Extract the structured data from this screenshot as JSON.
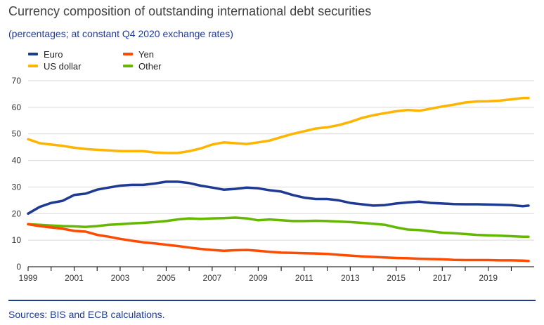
{
  "header": {
    "title": "Currency composition of outstanding international debt securities",
    "subtitle": "(percentages; at constant Q4 2020 exchange rates)"
  },
  "footer": {
    "source": "Sources: BIS and ECB calculations."
  },
  "chart_data": {
    "type": "line",
    "title": "Currency composition of outstanding international debt securities",
    "subtitle": "(percentages; at constant Q4 2020 exchange rates)",
    "xlabel": "",
    "ylabel": "",
    "xlim": [
      1999,
      2020.75
    ],
    "ylim": [
      0,
      70
    ],
    "x_ticks": [
      "1999",
      "2001",
      "2003",
      "2005",
      "2007",
      "2009",
      "2011",
      "2013",
      "2015",
      "2017",
      "2019"
    ],
    "y_ticks": [
      "0",
      "10",
      "20",
      "30",
      "40",
      "50",
      "60",
      "70"
    ],
    "grid": "horizontal",
    "legend_position": "top-left",
    "series": [
      {
        "name": "Euro",
        "color": "#1f3a93",
        "points": [
          [
            1999,
            20
          ],
          [
            1999.5,
            22.5
          ],
          [
            2000,
            24
          ],
          [
            2000.5,
            24.8
          ],
          [
            2001,
            27
          ],
          [
            2001.5,
            27.5
          ],
          [
            2002,
            29
          ],
          [
            2002.5,
            29.8
          ],
          [
            2003,
            30.5
          ],
          [
            2003.5,
            30.8
          ],
          [
            2004,
            30.8
          ],
          [
            2004.5,
            31.3
          ],
          [
            2005,
            32
          ],
          [
            2005.5,
            32
          ],
          [
            2006,
            31.5
          ],
          [
            2006.5,
            30.5
          ],
          [
            2007,
            29.8
          ],
          [
            2007.5,
            29
          ],
          [
            2008,
            29.3
          ],
          [
            2008.5,
            29.8
          ],
          [
            2009,
            29.5
          ],
          [
            2009.5,
            28.8
          ],
          [
            2010,
            28.3
          ],
          [
            2010.5,
            27
          ],
          [
            2011,
            26
          ],
          [
            2011.5,
            25.5
          ],
          [
            2012,
            25.5
          ],
          [
            2012.5,
            25
          ],
          [
            2013,
            24
          ],
          [
            2013.5,
            23.5
          ],
          [
            2014,
            23
          ],
          [
            2014.5,
            23.2
          ],
          [
            2015,
            23.8
          ],
          [
            2015.5,
            24.2
          ],
          [
            2016,
            24.5
          ],
          [
            2016.5,
            24
          ],
          [
            2017,
            23.8
          ],
          [
            2017.5,
            23.6
          ],
          [
            2018,
            23.5
          ],
          [
            2018.5,
            23.5
          ],
          [
            2019,
            23.4
          ],
          [
            2019.5,
            23.3
          ],
          [
            2020,
            23.2
          ],
          [
            2020.5,
            22.8
          ],
          [
            2020.75,
            23
          ]
        ]
      },
      {
        "name": "US dollar",
        "color": "#ffb400",
        "points": [
          [
            1999,
            48
          ],
          [
            1999.5,
            46.5
          ],
          [
            2000,
            46
          ],
          [
            2000.5,
            45.5
          ],
          [
            2001,
            44.8
          ],
          [
            2001.5,
            44.3
          ],
          [
            2002,
            44
          ],
          [
            2002.5,
            43.8
          ],
          [
            2003,
            43.5
          ],
          [
            2003.5,
            43.5
          ],
          [
            2004,
            43.5
          ],
          [
            2004.5,
            43
          ],
          [
            2005,
            42.8
          ],
          [
            2005.5,
            42.8
          ],
          [
            2006,
            43.5
          ],
          [
            2006.5,
            44.5
          ],
          [
            2007,
            46
          ],
          [
            2007.5,
            46.8
          ],
          [
            2008,
            46.5
          ],
          [
            2008.5,
            46.2
          ],
          [
            2009,
            46.8
          ],
          [
            2009.5,
            47.5
          ],
          [
            2010,
            48.8
          ],
          [
            2010.5,
            50
          ],
          [
            2011,
            51
          ],
          [
            2011.5,
            52
          ],
          [
            2012,
            52.5
          ],
          [
            2012.5,
            53.3
          ],
          [
            2013,
            54.5
          ],
          [
            2013.5,
            56
          ],
          [
            2014,
            57
          ],
          [
            2014.5,
            57.8
          ],
          [
            2015,
            58.5
          ],
          [
            2015.5,
            59
          ],
          [
            2016,
            58.7
          ],
          [
            2016.5,
            59.5
          ],
          [
            2017,
            60.3
          ],
          [
            2017.5,
            61
          ],
          [
            2018,
            61.8
          ],
          [
            2018.5,
            62.2
          ],
          [
            2019,
            62.3
          ],
          [
            2019.5,
            62.5
          ],
          [
            2020,
            63
          ],
          [
            2020.5,
            63.5
          ],
          [
            2020.75,
            63.5
          ]
        ]
      },
      {
        "name": "Yen",
        "color": "#ff4b00",
        "points": [
          [
            1999,
            16
          ],
          [
            1999.5,
            15.3
          ],
          [
            2000,
            14.8
          ],
          [
            2000.5,
            14.3
          ],
          [
            2001,
            13.5
          ],
          [
            2001.5,
            13.2
          ],
          [
            2002,
            12
          ],
          [
            2002.5,
            11.3
          ],
          [
            2003,
            10.5
          ],
          [
            2003.5,
            9.8
          ],
          [
            2004,
            9.2
          ],
          [
            2004.5,
            8.8
          ],
          [
            2005,
            8.3
          ],
          [
            2005.5,
            7.8
          ],
          [
            2006,
            7.2
          ],
          [
            2006.5,
            6.7
          ],
          [
            2007,
            6.3
          ],
          [
            2007.5,
            6
          ],
          [
            2008,
            6.2
          ],
          [
            2008.5,
            6.3
          ],
          [
            2009,
            6
          ],
          [
            2009.5,
            5.6
          ],
          [
            2010,
            5.3
          ],
          [
            2010.5,
            5.2
          ],
          [
            2011,
            5.1
          ],
          [
            2011.5,
            5
          ],
          [
            2012,
            4.8
          ],
          [
            2012.5,
            4.5
          ],
          [
            2013,
            4.2
          ],
          [
            2013.5,
            3.9
          ],
          [
            2014,
            3.7
          ],
          [
            2014.5,
            3.5
          ],
          [
            2015,
            3.3
          ],
          [
            2015.5,
            3.2
          ],
          [
            2016,
            3
          ],
          [
            2016.5,
            2.9
          ],
          [
            2017,
            2.8
          ],
          [
            2017.5,
            2.6
          ],
          [
            2018,
            2.5
          ],
          [
            2018.5,
            2.5
          ],
          [
            2019,
            2.5
          ],
          [
            2019.5,
            2.4
          ],
          [
            2020,
            2.4
          ],
          [
            2020.5,
            2.3
          ],
          [
            2020.75,
            2.2
          ]
        ]
      },
      {
        "name": "Other",
        "color": "#65b800",
        "points": [
          [
            1999,
            16
          ],
          [
            1999.5,
            15.8
          ],
          [
            2000,
            15.5
          ],
          [
            2000.5,
            15.3
          ],
          [
            2001,
            15.2
          ],
          [
            2001.5,
            15
          ],
          [
            2002,
            15.3
          ],
          [
            2002.5,
            15.8
          ],
          [
            2003,
            16
          ],
          [
            2003.5,
            16.3
          ],
          [
            2004,
            16.5
          ],
          [
            2004.5,
            16.8
          ],
          [
            2005,
            17.2
          ],
          [
            2005.5,
            17.8
          ],
          [
            2006,
            18.2
          ],
          [
            2006.5,
            18
          ],
          [
            2007,
            18.2
          ],
          [
            2007.5,
            18.3
          ],
          [
            2008,
            18.5
          ],
          [
            2008.5,
            18.2
          ],
          [
            2009,
            17.5
          ],
          [
            2009.5,
            17.8
          ],
          [
            2010,
            17.5
          ],
          [
            2010.5,
            17.2
          ],
          [
            2011,
            17.2
          ],
          [
            2011.5,
            17.3
          ],
          [
            2012,
            17.2
          ],
          [
            2012.5,
            17
          ],
          [
            2013,
            16.8
          ],
          [
            2013.5,
            16.5
          ],
          [
            2014,
            16.2
          ],
          [
            2014.5,
            15.8
          ],
          [
            2015,
            14.8
          ],
          [
            2015.5,
            14
          ],
          [
            2016,
            13.8
          ],
          [
            2016.5,
            13.3
          ],
          [
            2017,
            12.8
          ],
          [
            2017.5,
            12.6
          ],
          [
            2018,
            12.3
          ],
          [
            2018.5,
            12
          ],
          [
            2019,
            11.8
          ],
          [
            2019.5,
            11.7
          ],
          [
            2020,
            11.5
          ],
          [
            2020.5,
            11.3
          ],
          [
            2020.75,
            11.3
          ]
        ]
      }
    ]
  }
}
